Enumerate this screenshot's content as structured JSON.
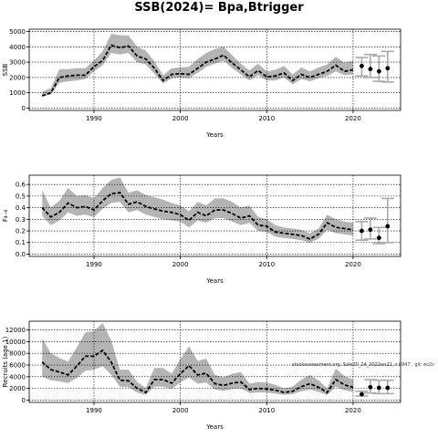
{
  "figure": {
    "title": "SSB(2024)= Bpa,Btrigger",
    "annotation": "stockassessment.org, Sole20_24_2022ws21, r:8947 , git: ec2c"
  },
  "colors": {
    "band": "#b4b4b4",
    "line": "#000000",
    "grid": "#000000",
    "errorbar": "#aaaaaa"
  },
  "chart_data": [
    {
      "type": "line",
      "name": "ssb",
      "ylabel": "SSB",
      "xlabel": "Years",
      "xlim": [
        1982.5,
        2025.5
      ],
      "ylim": [
        -150,
        5150
      ],
      "xticks": [
        1990,
        2000,
        2010,
        2020
      ],
      "yticks": [
        0,
        1000,
        2000,
        3000,
        4000,
        5000
      ],
      "grid": true,
      "x": [
        1984,
        1985,
        1986,
        1987,
        1988,
        1989,
        1990,
        1991,
        1992,
        1993,
        1994,
        1995,
        1996,
        1997,
        1998,
        1999,
        2000,
        2001,
        2002,
        2003,
        2004,
        2005,
        2006,
        2007,
        2008,
        2009,
        2010,
        2011,
        2012,
        2013,
        2014,
        2015,
        2016,
        2017,
        2018,
        2019,
        2020
      ],
      "estimate": [
        800,
        1000,
        2000,
        2100,
        2150,
        2150,
        2700,
        3100,
        4100,
        3950,
        4050,
        3400,
        3200,
        2600,
        1800,
        2200,
        2250,
        2200,
        2600,
        3000,
        3200,
        3450,
        2950,
        2500,
        2050,
        2450,
        2050,
        2100,
        2300,
        1800,
        2200,
        2000,
        2200,
        2400,
        2800,
        2400,
        2500
      ],
      "lower": [
        750,
        900,
        1650,
        1750,
        1800,
        1900,
        2400,
        2800,
        3600,
        3500,
        3600,
        3000,
        2850,
        2250,
        1600,
        1950,
        2000,
        1950,
        2300,
        2700,
        2900,
        3100,
        2600,
        2200,
        1800,
        2150,
        1800,
        1800,
        2000,
        1550,
        1900,
        1750,
        1950,
        2100,
        2400,
        2150,
        2200
      ],
      "upper": [
        1050,
        1300,
        2550,
        2550,
        2600,
        2600,
        3100,
        3700,
        4850,
        4750,
        4750,
        4000,
        3750,
        3050,
        2150,
        2600,
        2650,
        2700,
        3200,
        3600,
        3850,
        4000,
        3450,
        2900,
        2450,
        2900,
        2400,
        2500,
        2750,
        2200,
        2650,
        2400,
        2650,
        2850,
        3350,
        2950,
        3100
      ],
      "projection": {
        "x": [
          2021,
          2022,
          2023,
          2024
        ],
        "y": [
          2750,
          2550,
          2400,
          2600
        ],
        "lower": [
          2100,
          2000,
          1750,
          1700
        ],
        "upper": [
          3300,
          3500,
          3400,
          3700
        ]
      }
    },
    {
      "type": "line",
      "name": "fbar",
      "ylabel": "F₄₋₈",
      "xlabel": "Years",
      "xlim": [
        1982.5,
        2025.5
      ],
      "ylim": [
        -0.02,
        0.68
      ],
      "xticks": [
        1990,
        2000,
        2010,
        2020
      ],
      "yticks": [
        0.0,
        0.1,
        0.2,
        0.3,
        0.4,
        0.5,
        0.6
      ],
      "grid": true,
      "x": [
        1984,
        1985,
        1986,
        1987,
        1988,
        1989,
        1990,
        1991,
        1992,
        1993,
        1994,
        1995,
        1996,
        1997,
        1998,
        1999,
        2000,
        2001,
        2002,
        2003,
        2004,
        2005,
        2006,
        2007,
        2008,
        2009,
        2010,
        2011,
        2012,
        2013,
        2014,
        2015,
        2016,
        2017,
        2018,
        2019,
        2020
      ],
      "estimate": [
        0.4,
        0.32,
        0.36,
        0.44,
        0.4,
        0.41,
        0.38,
        0.46,
        0.52,
        0.53,
        0.43,
        0.45,
        0.41,
        0.39,
        0.37,
        0.36,
        0.34,
        0.29,
        0.36,
        0.33,
        0.38,
        0.38,
        0.35,
        0.31,
        0.33,
        0.25,
        0.24,
        0.19,
        0.18,
        0.17,
        0.16,
        0.13,
        0.17,
        0.27,
        0.23,
        0.22,
        0.21
      ],
      "lower": [
        0.33,
        0.25,
        0.29,
        0.36,
        0.33,
        0.34,
        0.32,
        0.39,
        0.44,
        0.45,
        0.36,
        0.38,
        0.34,
        0.32,
        0.3,
        0.29,
        0.28,
        0.23,
        0.29,
        0.27,
        0.31,
        0.31,
        0.28,
        0.25,
        0.27,
        0.2,
        0.19,
        0.15,
        0.14,
        0.13,
        0.12,
        0.1,
        0.13,
        0.21,
        0.18,
        0.17,
        0.16
      ],
      "upper": [
        0.55,
        0.4,
        0.46,
        0.57,
        0.5,
        0.51,
        0.48,
        0.57,
        0.64,
        0.66,
        0.53,
        0.55,
        0.51,
        0.49,
        0.47,
        0.44,
        0.42,
        0.37,
        0.45,
        0.42,
        0.48,
        0.48,
        0.45,
        0.4,
        0.42,
        0.32,
        0.3,
        0.25,
        0.23,
        0.22,
        0.21,
        0.18,
        0.22,
        0.34,
        0.3,
        0.28,
        0.27
      ],
      "projection": {
        "x": [
          2021,
          2022,
          2023,
          2024
        ],
        "y": [
          0.2,
          0.21,
          0.14,
          0.24
        ],
        "lower": [
          0.12,
          0.13,
          0.09,
          0.1
        ],
        "upper": [
          0.28,
          0.31,
          0.23,
          0.48
        ]
      }
    },
    {
      "type": "line",
      "name": "recruits",
      "ylabel": "Recruits (age 1)",
      "xlabel": "Years",
      "xlim": [
        1982.5,
        2025.5
      ],
      "ylim": [
        -400,
        13500
      ],
      "xticks": [
        1990,
        2000,
        2010,
        2020
      ],
      "yticks": [
        0,
        2000,
        4000,
        6000,
        8000,
        10000,
        12000
      ],
      "grid": true,
      "x": [
        1984,
        1985,
        1986,
        1987,
        1988,
        1989,
        1990,
        1991,
        1992,
        1993,
        1994,
        1995,
        1996,
        1997,
        1998,
        1999,
        2000,
        2001,
        2002,
        2003,
        2004,
        2005,
        2006,
        2007,
        2008,
        2009,
        2010,
        2011,
        2012,
        2013,
        2014,
        2015,
        2016,
        2017,
        2018,
        2019,
        2020
      ],
      "estimate": [
        6500,
        5200,
        4800,
        4300,
        5800,
        7500,
        7500,
        8500,
        6500,
        3400,
        3300,
        2000,
        1300,
        3500,
        3500,
        2900,
        4500,
        5900,
        4300,
        4600,
        2800,
        2500,
        2900,
        3100,
        1800,
        2000,
        1900,
        1700,
        1300,
        1500,
        2300,
        2800,
        2200,
        1300,
        3500,
        2600,
        2200
      ],
      "lower": [
        4000,
        3400,
        3200,
        2900,
        3800,
        5000,
        5200,
        5800,
        4300,
        2300,
        2200,
        1300,
        900,
        2300,
        2300,
        1900,
        3000,
        3900,
        2800,
        3000,
        1800,
        1600,
        1900,
        2000,
        1200,
        1300,
        1300,
        1100,
        900,
        1000,
        1500,
        1800,
        1400,
        850,
        2300,
        1700,
        1400
      ],
      "upper": [
        10600,
        8000,
        7200,
        6600,
        9000,
        11600,
        11800,
        13200,
        10200,
        5200,
        5200,
        3100,
        2100,
        5500,
        5500,
        4500,
        7000,
        9200,
        6700,
        7100,
        4300,
        3900,
        4500,
        4800,
        2800,
        3100,
        3000,
        2600,
        2000,
        2300,
        3500,
        4300,
        3400,
        2000,
        5400,
        4100,
        3500
      ],
      "projection": {
        "x": [
          2021,
          2022,
          2023,
          2024
        ],
        "y": [
          1000,
          2200,
          2100,
          2100
        ],
        "lower": [
          700,
          1200,
          1100,
          1100
        ],
        "upper": [
          1500,
          3500,
          3400,
          3400
        ]
      }
    }
  ]
}
